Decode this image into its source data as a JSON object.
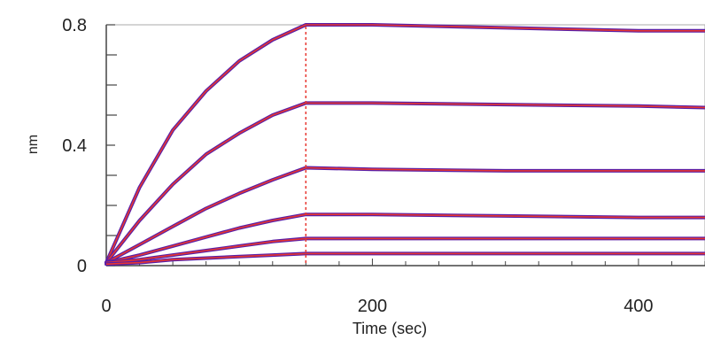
{
  "chart_data": {
    "type": "line",
    "title": "",
    "xlabel": "Time (sec)",
    "ylabel": "nm",
    "xlim": [
      0,
      450
    ],
    "ylim": [
      0,
      0.8
    ],
    "x_ticks": [
      "0",
      "200",
      "400"
    ],
    "y_ticks": [
      "0",
      "0.4",
      "0.8"
    ],
    "grid": false,
    "association_end": 150,
    "colors": {
      "raw": "#5b1fa6",
      "fit": "#e8362f",
      "axis": "#444444",
      "frame": "#aaaaaa"
    },
    "series": [
      {
        "values": [
          [
            0,
            0.01
          ],
          [
            25,
            0.26
          ],
          [
            50,
            0.45
          ],
          [
            75,
            0.58
          ],
          [
            100,
            0.68
          ],
          [
            125,
            0.75
          ],
          [
            150,
            0.8
          ],
          [
            200,
            0.8
          ],
          [
            300,
            0.79
          ],
          [
            400,
            0.78
          ],
          [
            450,
            0.78
          ]
        ]
      },
      {
        "values": [
          [
            0,
            0.01
          ],
          [
            25,
            0.15
          ],
          [
            50,
            0.27
          ],
          [
            75,
            0.37
          ],
          [
            100,
            0.44
          ],
          [
            125,
            0.5
          ],
          [
            150,
            0.54
          ],
          [
            200,
            0.54
          ],
          [
            300,
            0.535
          ],
          [
            400,
            0.53
          ],
          [
            450,
            0.525
          ]
        ]
      },
      {
        "values": [
          [
            0,
            0.01
          ],
          [
            25,
            0.07
          ],
          [
            50,
            0.13
          ],
          [
            75,
            0.19
          ],
          [
            100,
            0.24
          ],
          [
            125,
            0.285
          ],
          [
            150,
            0.325
          ],
          [
            200,
            0.32
          ],
          [
            300,
            0.315
          ],
          [
            400,
            0.315
          ],
          [
            450,
            0.315
          ]
        ]
      },
      {
        "values": [
          [
            0,
            0.01
          ],
          [
            25,
            0.035
          ],
          [
            50,
            0.065
          ],
          [
            75,
            0.095
          ],
          [
            100,
            0.125
          ],
          [
            125,
            0.15
          ],
          [
            150,
            0.17
          ],
          [
            200,
            0.17
          ],
          [
            300,
            0.165
          ],
          [
            400,
            0.16
          ],
          [
            450,
            0.16
          ]
        ]
      },
      {
        "values": [
          [
            0,
            0.01
          ],
          [
            25,
            0.02
          ],
          [
            50,
            0.035
          ],
          [
            75,
            0.05
          ],
          [
            100,
            0.065
          ],
          [
            125,
            0.08
          ],
          [
            150,
            0.09
          ],
          [
            200,
            0.09
          ],
          [
            300,
            0.09
          ],
          [
            400,
            0.09
          ],
          [
            450,
            0.09
          ]
        ]
      },
      {
        "values": [
          [
            0,
            0.005
          ],
          [
            25,
            0.01
          ],
          [
            50,
            0.02
          ],
          [
            75,
            0.025
          ],
          [
            100,
            0.03
          ],
          [
            125,
            0.035
          ],
          [
            150,
            0.04
          ],
          [
            200,
            0.04
          ],
          [
            300,
            0.04
          ],
          [
            400,
            0.04
          ],
          [
            450,
            0.04
          ]
        ]
      }
    ]
  }
}
